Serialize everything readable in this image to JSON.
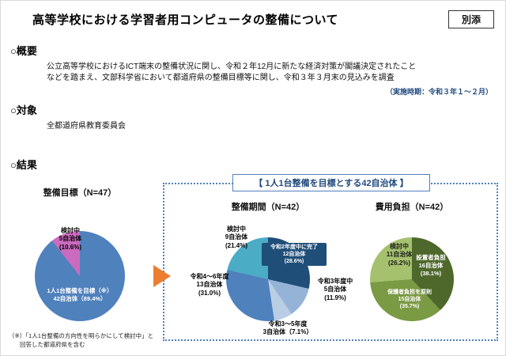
{
  "page": {
    "title": "高等学校における学習者用コンピュータの整備について",
    "badge": "別添"
  },
  "colors": {
    "dashed_border": "#4f81bd",
    "arrow": "#ed7d31",
    "period_text": "#1f497d",
    "box_title_text": "#1f497d"
  },
  "overview": {
    "heading": "○概要",
    "line1": "公立高等学校におけるICT端末の整備状況に関し、令和２年12月に新たな経済対策が閣議決定されたこと",
    "line2": "などを踏まえ、文部科学省において都道府県の整備目標等に関し、令和３年３月末の見込みを調査",
    "period": "（実施時期：令和３年１～２月）"
  },
  "target": {
    "heading": "○対象",
    "body": "全都道府県教育委員会"
  },
  "results": {
    "heading": "○結果",
    "group_box_title": "【 1人1台整備を目標とする42自治体 】"
  },
  "footnote": {
    "line1": "（※）「1人1台整備の方向性を明らかにして検討中」と",
    "line2": "回答した都道府県を含む"
  },
  "chart_data": [
    {
      "type": "pie",
      "title": "整備目標（N=47）",
      "n": 47,
      "unit": "自治体",
      "legend_position": "inside",
      "slices": [
        {
          "label": "1人1台整備を目標（※）",
          "value": 42,
          "pct": 89.4,
          "color": "#4f81bd",
          "label_text": "1人1台整備を目標（※）\n42自治体（89.4%）"
        },
        {
          "label": "検討中",
          "value": 5,
          "pct": 10.6,
          "color": "#cb6bc0",
          "label_text": "検討中\n5自治体\n(10.6%)"
        }
      ]
    },
    {
      "type": "pie",
      "title": "整備期間（N=42）",
      "n": 42,
      "unit": "自治体",
      "legend_position": "inside",
      "slices": [
        {
          "label": "令和2年度中に完了",
          "value": 12,
          "pct": 28.6,
          "color": "#1f4e79",
          "label_text": "令和2年度中に完了\n12自治体\n(28.6%)"
        },
        {
          "label": "令和3年度中",
          "value": 5,
          "pct": 11.9,
          "color": "#95b3d7",
          "label_text": "令和3年度中\n5自治体\n(11.9%)"
        },
        {
          "label": "令和3～5年度",
          "value": 3,
          "pct": 7.1,
          "color": "#b9cde5",
          "label_text": "令和3～5年度\n3自治体（7.1%）"
        },
        {
          "label": "令和4～6年度",
          "value": 13,
          "pct": 31.0,
          "color": "#4f81bd",
          "label_text": "令和4～6年度\n13自治体\n(31.0%)"
        },
        {
          "label": "検討中",
          "value": 9,
          "pct": 21.4,
          "color": "#4bacc6",
          "label_text": "検討中\n9自治体\n(21.4%)"
        }
      ]
    },
    {
      "type": "pie",
      "title": "費用負担（N=42）",
      "n": 42,
      "unit": "自治体",
      "legend_position": "inside",
      "slices": [
        {
          "label": "設置者負担",
          "value": 16,
          "pct": 38.1,
          "color": "#4e682c",
          "label_text": "設置者負担\n16自治体\n(38.1%)"
        },
        {
          "label": "保護者負担を原則",
          "value": 15,
          "pct": 35.7,
          "color": "#7b9a44",
          "label_text": "保護者負担を原則\n15自治体\n(35.7%)"
        },
        {
          "label": "検討中",
          "value": 11,
          "pct": 26.2,
          "color": "#a5c16d",
          "label_text": "検討中\n11自治体\n(26.2%)"
        }
      ]
    }
  ]
}
